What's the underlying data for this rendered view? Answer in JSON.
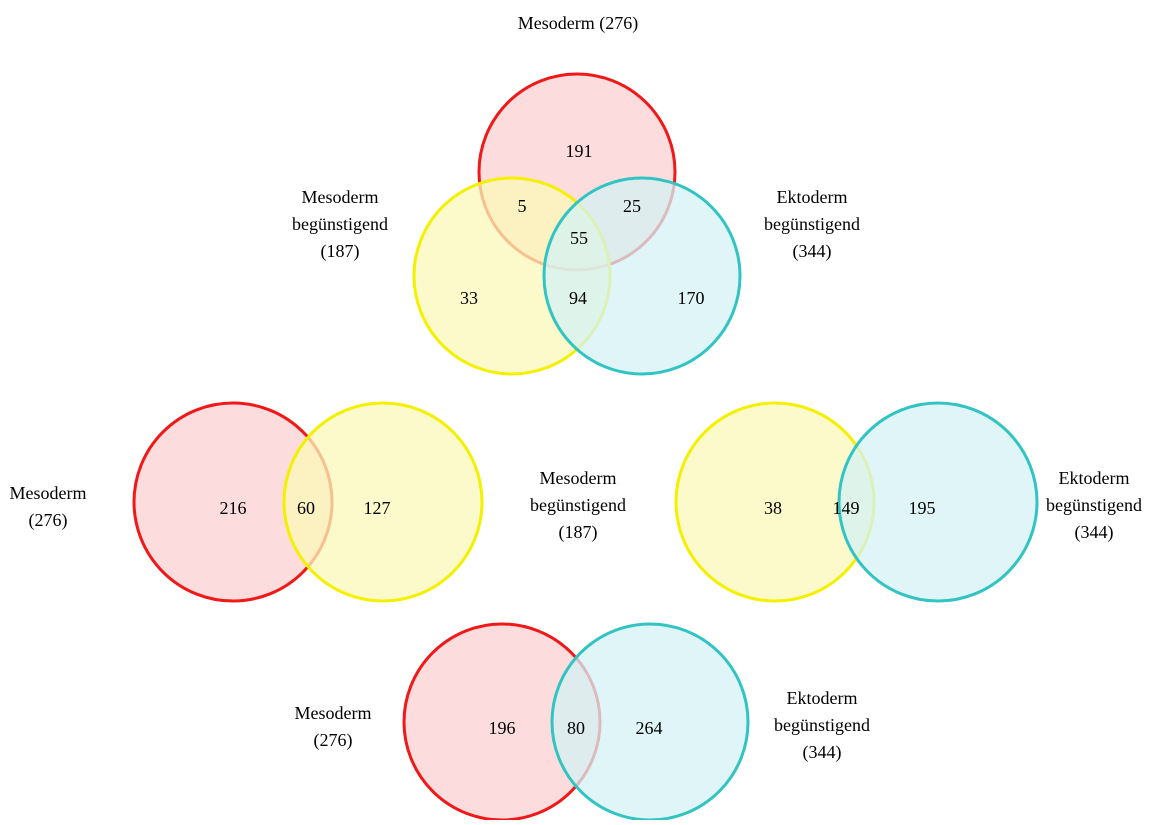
{
  "colors": {
    "mesoderm_stroke": "#f01818",
    "mesoderm_fill": "#fbd0d0",
    "mesoderm_favoring_stroke": "#f4f000",
    "mesoderm_favoring_fill": "#fbf8b8",
    "ectoderm_favoring_stroke": "#32c3c3",
    "ectoderm_favoring_fill": "#d4f2f4"
  },
  "sets": {
    "mesoderm": {
      "name": "Mesoderm",
      "count": "(276)",
      "title": "Mesoderm (276)"
    },
    "mesoderm_favoring": {
      "line1": "Mesoderm",
      "line2": "begünstigend",
      "count": "(187)"
    },
    "ectoderm_favoring": {
      "line1": "Ektoderm",
      "line2": "begünstigend",
      "count": "(344)"
    }
  },
  "venns": {
    "triple": {
      "mesoderm_only": "191",
      "mesoderm_and_mesoderm_favoring": "5",
      "mesoderm_and_ectoderm_favoring": "25",
      "all_three": "55",
      "mesoderm_favoring_only": "33",
      "mesoderm_favoring_and_ectoderm_favoring": "94",
      "ectoderm_favoring_only": "170"
    },
    "mesoderm_vs_mesoderm_favoring": {
      "left_only": "216",
      "overlap": "60",
      "right_only": "127"
    },
    "mesoderm_favoring_vs_ectoderm_favoring": {
      "left_only": "38",
      "overlap": "149",
      "right_only": "195"
    },
    "mesoderm_vs_ectoderm_favoring": {
      "left_only": "196",
      "overlap": "80",
      "right_only": "264"
    }
  }
}
